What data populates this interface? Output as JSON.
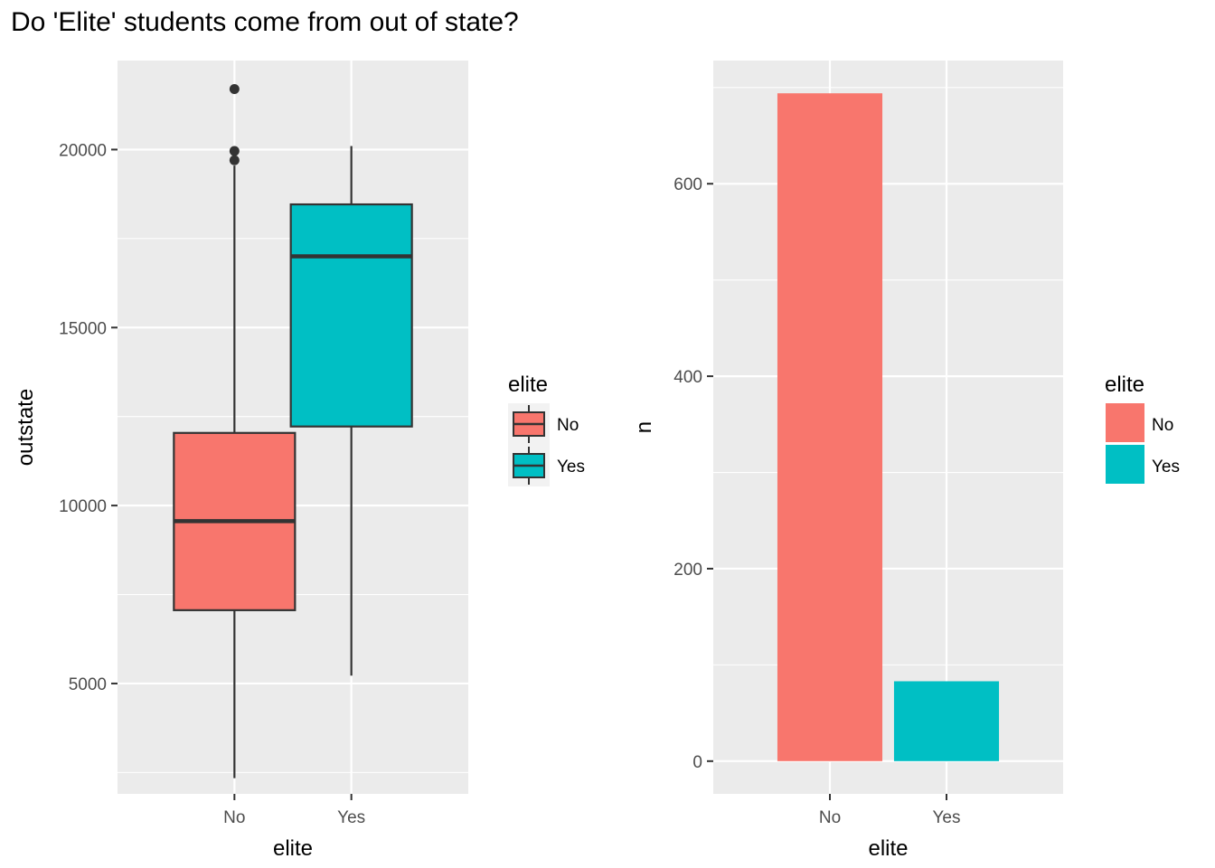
{
  "page": {
    "title": "Do 'Elite' students come from out of state?"
  },
  "colors": {
    "no": "#F8766D",
    "yes": "#00BFC4",
    "panel_bg": "#EBEBEB",
    "grid": "#FFFFFF",
    "outline": "#333333",
    "axis_text": "#4D4D4D"
  },
  "chart_data": [
    {
      "type": "boxplot",
      "xlabel": "elite",
      "ylabel": "outstate",
      "categories": [
        "No",
        "Yes"
      ],
      "ylim": [
        1900,
        22500
      ],
      "yticks": [
        5000,
        10000,
        15000,
        20000
      ],
      "ytick_labels": [
        "5000",
        "10000",
        "15000",
        "20000"
      ],
      "grid": true,
      "boxes": [
        {
          "category": "No",
          "whisker_low": 2340,
          "q1": 7060,
          "median": 9560,
          "q3": 12040,
          "whisker_high": 19550,
          "outliers": [
            21700,
            19960,
            19700
          ]
        },
        {
          "category": "Yes",
          "whisker_low": 5220,
          "q1": 12220,
          "median": 17000,
          "q3": 18460,
          "whisker_high": 20100,
          "outliers": []
        }
      ],
      "legend": {
        "title": "elite",
        "entries": [
          "No",
          "Yes"
        ],
        "position": "right"
      }
    },
    {
      "type": "bar",
      "xlabel": "elite",
      "ylabel": "n",
      "categories": [
        "No",
        "Yes"
      ],
      "values": [
        694,
        83
      ],
      "ylim": [
        -34,
        728
      ],
      "yticks": [
        0,
        200,
        400,
        600
      ],
      "ytick_labels": [
        "0",
        "200",
        "400",
        "600"
      ],
      "grid": true,
      "legend": {
        "title": "elite",
        "entries": [
          "No",
          "Yes"
        ],
        "position": "right"
      }
    }
  ]
}
